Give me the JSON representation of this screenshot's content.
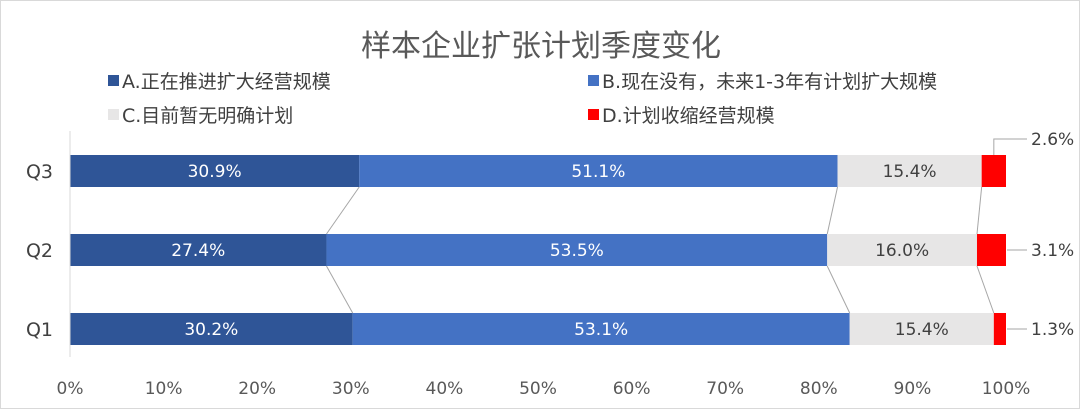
{
  "chart_data": {
    "type": "bar",
    "orientation": "horizontal",
    "stacked": "percent",
    "title": "样本企业扩张计划季度变化",
    "categories": [
      "Q3",
      "Q2",
      "Q1"
    ],
    "series": [
      {
        "name": "A.正在推进扩大经营规模",
        "values": [
          30.9,
          27.4,
          30.2
        ],
        "labels": [
          "30.9%",
          "27.4%",
          "30.2%"
        ],
        "color": "#2F5597"
      },
      {
        "name": "B.现在没有，未来1-3年有计划扩大规模",
        "values": [
          51.1,
          53.5,
          53.1
        ],
        "labels": [
          "51.1%",
          "53.5%",
          "53.1%"
        ],
        "color": "#4472C4"
      },
      {
        "name": "C.目前暂无明确计划",
        "values": [
          15.4,
          16.0,
          15.4
        ],
        "labels": [
          "15.4%",
          "16.0%",
          "15.4%"
        ],
        "color": "#E7E6E6"
      },
      {
        "name": "D.计划收缩经营规模",
        "values": [
          2.6,
          3.1,
          1.3
        ],
        "labels": [
          "2.6%",
          "3.1%",
          "1.3%"
        ],
        "color": "#FF0000"
      }
    ],
    "x_ticks": [
      "0%",
      "10%",
      "20%",
      "30%",
      "40%",
      "50%",
      "60%",
      "70%",
      "80%",
      "90%",
      "100%"
    ],
    "xlim": [
      0,
      100
    ],
    "grid": false,
    "legend_position": "top",
    "series_lines": true,
    "series_line_color": "#A6A6A6",
    "axis_color": "#D9D9D9"
  }
}
